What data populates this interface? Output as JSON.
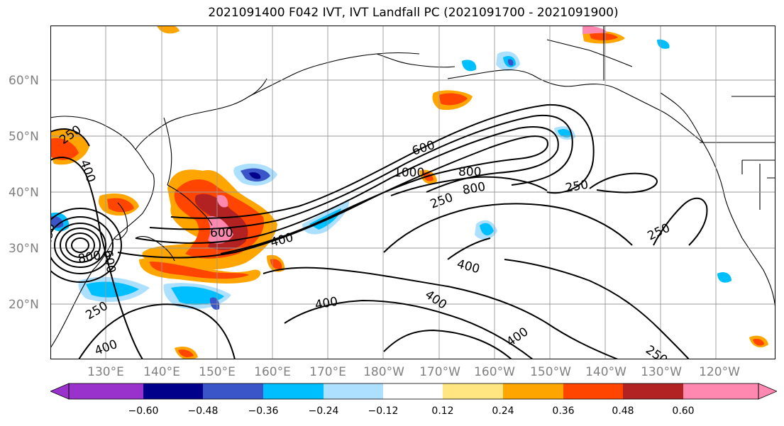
{
  "title": "2021091400 F042 IVT, IVT Landfall PC (2021091700 - 2021091900)",
  "lat_labels": [
    "60°N",
    "50°N",
    "40°N",
    "30°N",
    "20°N"
  ],
  "lon_labels": [
    "130°E",
    "140°E",
    "150°E",
    "160°E",
    "170°E",
    "180°W",
    "170°W",
    "160°W",
    "150°W",
    "140°W",
    "130°W",
    "120°W"
  ],
  "contour_labels": [
    "250",
    "400",
    "600",
    "800",
    "1000",
    "800",
    "600",
    "250",
    "250",
    "250",
    "400",
    "400",
    "400",
    "250",
    "400",
    "400",
    "250",
    "800",
    "400",
    "600",
    "250"
  ],
  "colorbar": {
    "ticks": [
      "−0.60",
      "−0.48",
      "−0.36",
      "−0.24",
      "−0.12",
      "0.12",
      "0.24",
      "0.36",
      "0.48",
      "0.60"
    ],
    "colors": [
      "#9932CC",
      "#00008B",
      "#3A55C8",
      "#00BFFF",
      "#ADDFFF",
      "#FFFFFF",
      "#FFE680",
      "#FFA500",
      "#FF4500",
      "#B22222",
      "#FF88B0",
      "#FF88B0"
    ]
  }
}
